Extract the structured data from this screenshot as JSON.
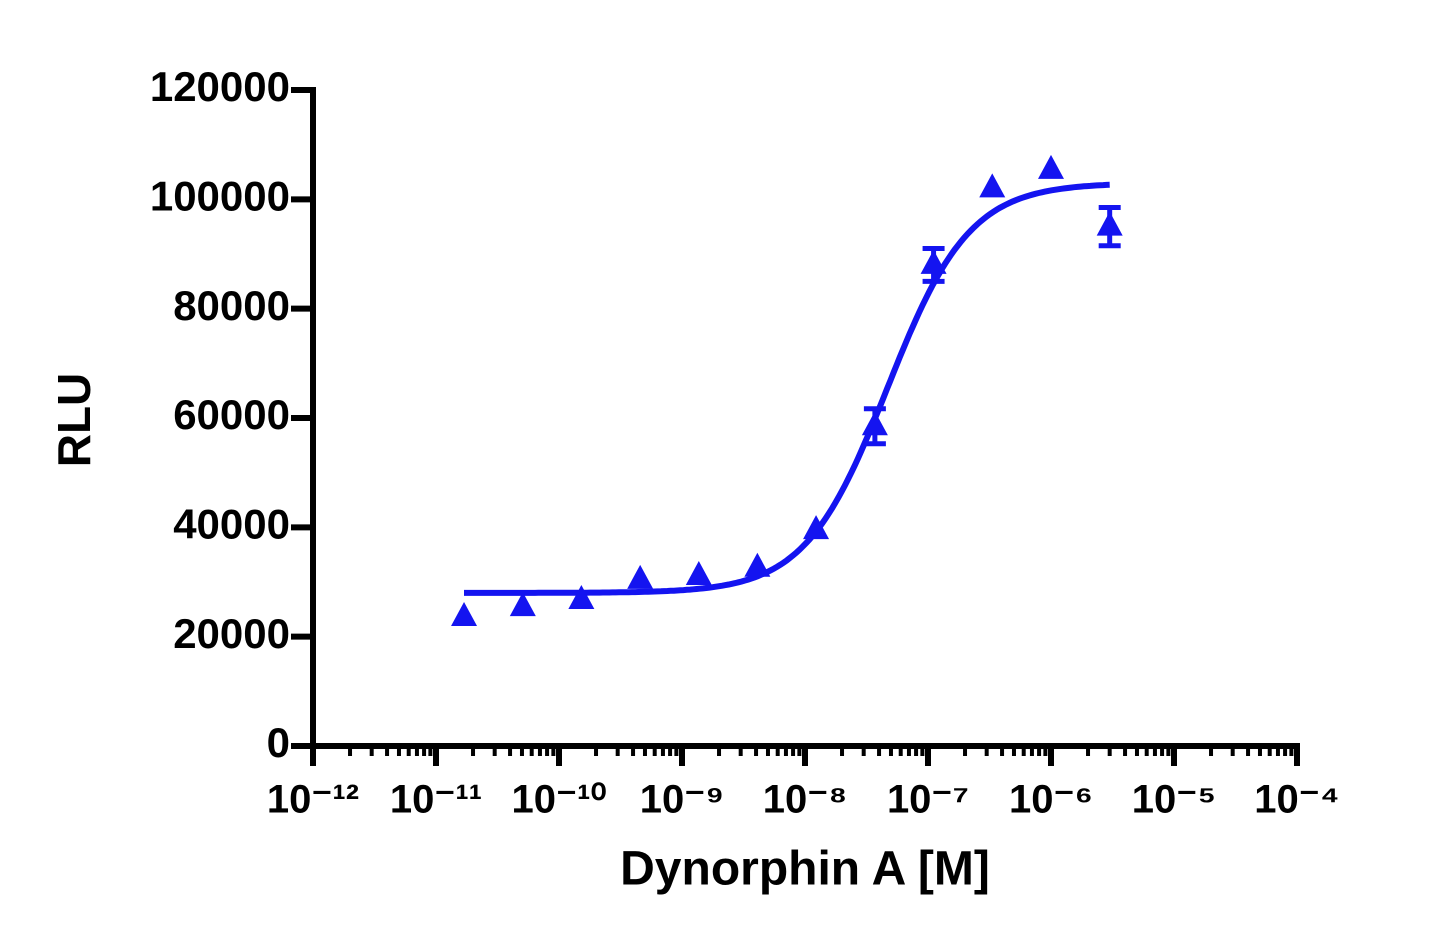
{
  "chart_data": {
    "type": "scatter",
    "xlabel": "Dynorphin A [M]",
    "ylabel": "RLU",
    "x": [
      1.69e-11,
      5.08e-11,
      1.52e-10,
      4.57e-10,
      1.37e-09,
      4.1e-09,
      1.23e-08,
      3.7e-08,
      1.11e-07,
      3.33e-07,
      1e-06,
      3e-06
    ],
    "values": [
      23600,
      25400,
      26700,
      30400,
      31100,
      32600,
      39500,
      58500,
      88000,
      102000,
      105400,
      95000
    ],
    "errors": [
      null,
      null,
      null,
      null,
      null,
      null,
      null,
      3200,
      3000,
      null,
      null,
      3500
    ],
    "fit": {
      "bottom": 28000,
      "top": 103000,
      "logEC50": -7.33,
      "hill": 1.3
    },
    "color": "#1414f0",
    "xscale": "log",
    "xlim": [
      1e-12,
      0.0001
    ],
    "xticks": [
      {
        "value": 1e-12,
        "label": "10⁻¹²"
      },
      {
        "value": 1e-11,
        "label": "10⁻¹¹"
      },
      {
        "value": 1e-10,
        "label": "10⁻¹⁰"
      },
      {
        "value": 1e-09,
        "label": "10⁻⁹"
      },
      {
        "value": 1e-08,
        "label": "10⁻⁸"
      },
      {
        "value": 1e-07,
        "label": "10⁻⁷"
      },
      {
        "value": 1e-06,
        "label": "10⁻⁶"
      },
      {
        "value": 1e-05,
        "label": "10⁻⁵"
      },
      {
        "value": 0.0001,
        "label": "10⁻⁴"
      }
    ],
    "ylim": [
      0,
      120000
    ],
    "yticks": [
      0,
      20000,
      40000,
      60000,
      80000,
      100000,
      120000
    ],
    "grid": false
  }
}
